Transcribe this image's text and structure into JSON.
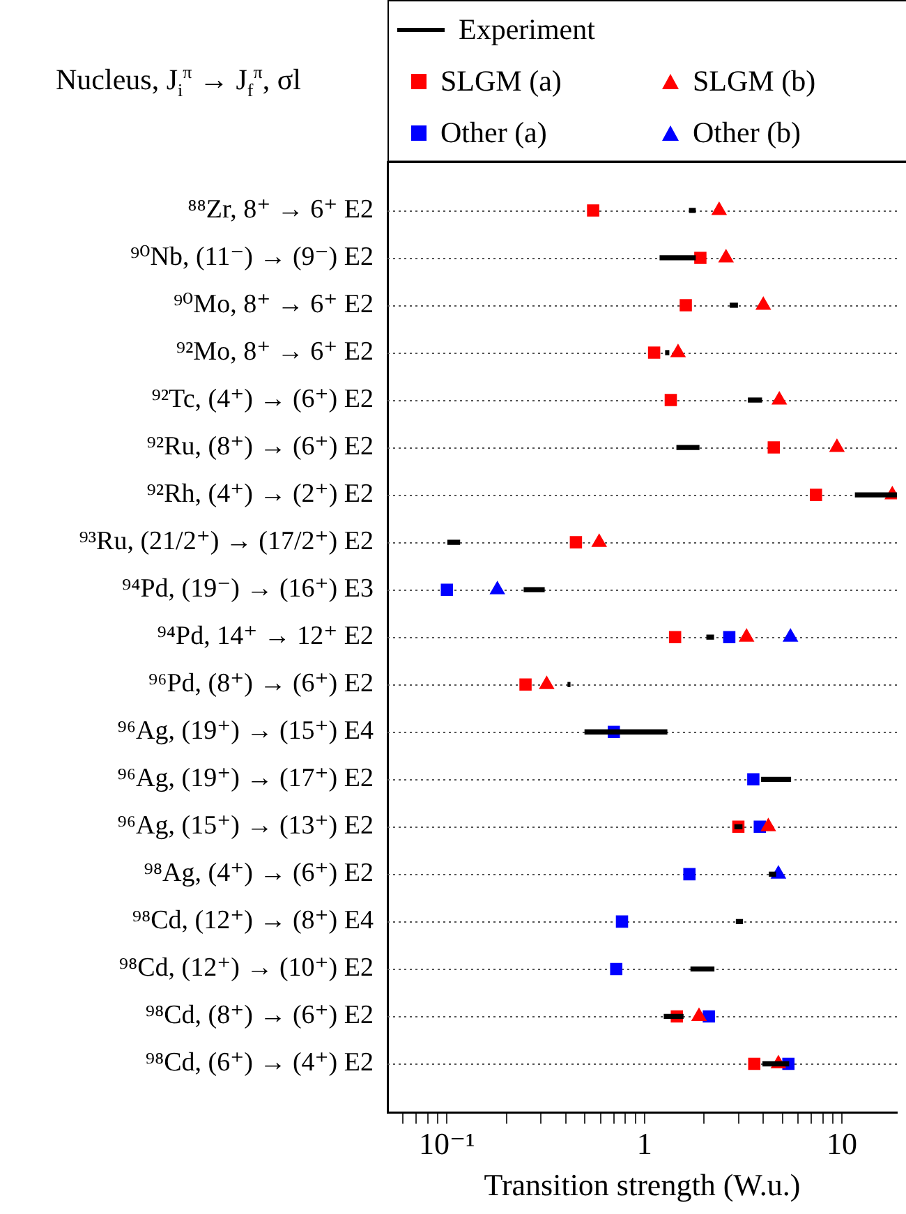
{
  "chart_data": {
    "type": "scatter",
    "orientation": "horizontal",
    "ylabel": "Nucleus, J$_{i}$$^{π}$ → J$_{f}$$^{π}$, σl",
    "xlabel": "Transition strength (W.u.)",
    "categories": [
      "⁸⁸Zr, 8⁺ → 6⁺ E2",
      "⁹⁰Nb, (11⁻) → (9⁻) E2",
      "⁹⁰Mo, 8⁺ → 6⁺ E2",
      "⁹²Mo, 8⁺ → 6⁺ E2",
      "⁹²Tc, (4⁺) → (6⁺) E2",
      "⁹²Ru, (8⁺) → (6⁺) E2",
      "⁹²Rh, (4⁺) → (2⁺) E2",
      "⁹³Ru, (21/2⁺) → (17/2⁺) E2",
      "⁹⁴Pd, (19⁻) → (16⁺) E3",
      "⁹⁴Pd, 14⁺ → 12⁺ E2",
      "⁹⁶Pd, (8⁺) → (6⁺) E2",
      "⁹⁶Ag, (19⁺) → (15⁺) E4",
      "⁹⁶Ag, (19⁺) → (17⁺) E2",
      "⁹⁶Ag, (15⁺) → (13⁺) E2",
      "⁹⁸Ag, (4⁺) → (6⁺) E2",
      "⁹⁸Cd, (12⁺) → (8⁺) E4",
      "⁹⁸Cd, (12⁺) → (10⁺) E2",
      "⁹⁸Cd, (8⁺) → (6⁺) E2",
      "⁹⁸Cd, (6⁺) → (4⁺) E2"
    ],
    "series": [
      {
        "name": "Experiment",
        "type": "bar",
        "color": "#000000",
        "base": [
          1.69,
          1.2,
          2.72,
          1.28,
          3.36,
          1.46,
          11.7,
          0.101,
          0.246,
          2.07,
          0.41,
          0.5,
          3.92,
          2.87,
          4.29,
          2.92,
          1.72,
          1.26,
          3.98
        ],
        "values": [
          0.12,
          0.61,
          0.24,
          0.05,
          0.56,
          0.43,
          7.3,
          0.015,
          0.065,
          0.17,
          0.01,
          0.8,
          1.58,
          0.25,
          0.33,
          0.22,
          0.53,
          0.31,
          1.4
        ]
      },
      {
        "name": "SLGM (a)",
        "color": "#ff0000",
        "marker": "square",
        "values": [
          0.55,
          1.92,
          1.62,
          1.12,
          1.36,
          4.52,
          7.39,
          0.45,
          null,
          1.43,
          0.25,
          null,
          null,
          2.99,
          null,
          null,
          null,
          1.46,
          3.6
        ]
      },
      {
        "name": "SLGM (b)",
        "color": "#ff0000",
        "marker": "triangle",
        "values": [
          2.39,
          2.59,
          4.0,
          1.48,
          4.82,
          9.44,
          18,
          0.59,
          null,
          3.29,
          0.32,
          null,
          null,
          4.24,
          null,
          null,
          null,
          1.89,
          4.77
        ]
      },
      {
        "name": "Other (a)",
        "color": "#0000ff",
        "marker": "square",
        "values": [
          null,
          null,
          null,
          null,
          null,
          null,
          null,
          null,
          0.1,
          2.69,
          null,
          0.7,
          3.56,
          3.84,
          1.69,
          0.77,
          0.72,
          2.12,
          5.36
        ]
      },
      {
        "name": "Other (b)",
        "color": "#0000ff",
        "marker": "triangle",
        "values": [
          null,
          null,
          null,
          null,
          null,
          null,
          null,
          null,
          0.18,
          5.49,
          null,
          null,
          null,
          null,
          4.77,
          null,
          null,
          null,
          null
        ]
      }
    ],
    "log": "x",
    "xlim": [
      0.05,
      19
    ],
    "xticks": [
      {
        "value": 0.06,
        "label": null
      },
      {
        "value": 0.07,
        "label": null
      },
      {
        "value": 0.08,
        "label": null
      },
      {
        "value": 0.09,
        "label": null
      },
      {
        "value": 0.1,
        "label": "10⁻¹"
      },
      {
        "value": 0.2,
        "label": null
      },
      {
        "value": 0.3,
        "label": null
      },
      {
        "value": 0.4,
        "label": null
      },
      {
        "value": 0.5,
        "label": null
      },
      {
        "value": 0.6,
        "label": null
      },
      {
        "value": 0.7,
        "label": null
      },
      {
        "value": 0.8,
        "label": null
      },
      {
        "value": 0.9,
        "label": null
      },
      1,
      {
        "value": 2,
        "label": null
      },
      {
        "value": 3,
        "label": null
      },
      {
        "value": 4,
        "label": null
      },
      {
        "value": 5,
        "label": null
      },
      {
        "value": 6,
        "label": null
      },
      {
        "value": 7,
        "label": null
      },
      {
        "value": 8,
        "label": null
      },
      {
        "value": 9,
        "label": null
      },
      10
    ],
    "grid": "y",
    "legend": "top"
  }
}
